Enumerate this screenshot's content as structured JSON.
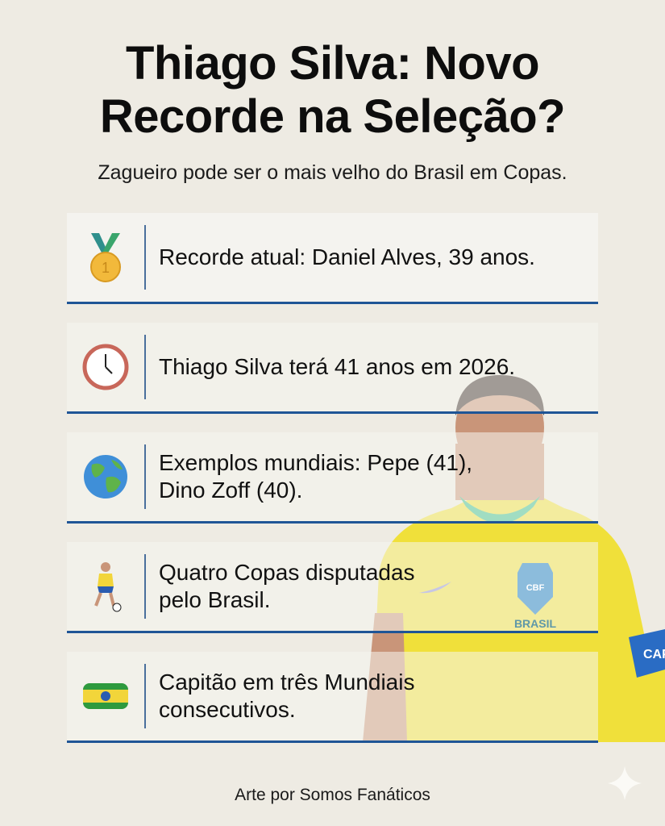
{
  "header": {
    "title_line1": "Thiago Silva: Novo",
    "title_line2": "Recorde na Seleção?",
    "subtitle": "Zagueiro pode ser o mais velho do Brasil em Copas."
  },
  "items": [
    {
      "icon": "medal-icon",
      "line1": "Recorde atual: Daniel Alves, 39 anos.",
      "line2": ""
    },
    {
      "icon": "clock-icon",
      "line1": "Thiago Silva terá 41 anos em 2026.",
      "line2": ""
    },
    {
      "icon": "globe-icon",
      "line1": "Exemplos mundiais: Pepe (41),",
      "line2": "Dino Zoff (40)."
    },
    {
      "icon": "soccer-player-icon",
      "line1": "Quatro Copas disputadas",
      "line2": "pelo Brasil."
    },
    {
      "icon": "captain-armband-icon",
      "line1": "Capitão em três Mundiais",
      "line2": "consecutivos."
    }
  ],
  "photo": {
    "jersey_text": "BRASIL",
    "crest_text": "CBF",
    "armband_text": "CAP"
  },
  "footer": {
    "credit": "Arte por Somos Fanáticos"
  },
  "colors": {
    "background": "#eeebe3",
    "accent_line": "#1f5596",
    "jersey": "#f2e236"
  }
}
